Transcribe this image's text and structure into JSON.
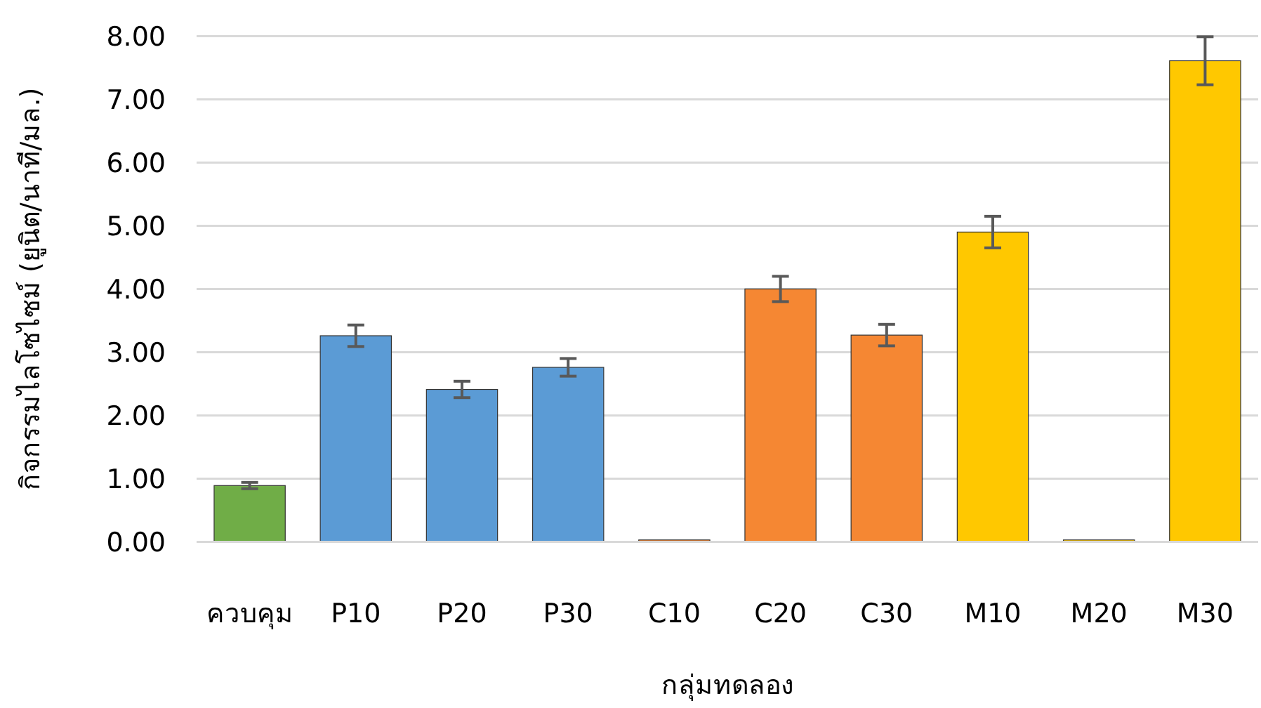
{
  "chart_data": {
    "type": "bar",
    "xlabel": "กลุ่มทดลอง",
    "ylabel": "กิจกรรมไลโซไซม์ (ยูนิต/นาที/มล.)",
    "categories": [
      "ควบคุม",
      "P10",
      "P20",
      "P30",
      "C10",
      "C20",
      "C30",
      "M10",
      "M20",
      "M30"
    ],
    "values": [
      0.89,
      3.26,
      2.41,
      2.76,
      0.03,
      4.0,
      3.27,
      4.9,
      0.03,
      7.61
    ],
    "errors": [
      0.05,
      0.17,
      0.13,
      0.14,
      null,
      0.2,
      0.17,
      0.25,
      null,
      0.38
    ],
    "colors": [
      "#70ad47",
      "#5b9bd5",
      "#5b9bd5",
      "#5b9bd5",
      "#f58733",
      "#f58733",
      "#f58733",
      "#ffc800",
      "#ffc800",
      "#ffc800"
    ],
    "ylim": [
      0,
      8
    ],
    "yticks": [
      {
        "value": 0,
        "label": "0.00"
      },
      {
        "value": 1,
        "label": "1.00"
      },
      {
        "value": 2,
        "label": "2.00"
      },
      {
        "value": 3,
        "label": "3.00"
      },
      {
        "value": 4,
        "label": "4.00"
      },
      {
        "value": 5,
        "label": "5.00"
      },
      {
        "value": 6,
        "label": "6.00"
      },
      {
        "value": 7,
        "label": "7.00"
      },
      {
        "value": 8,
        "label": "8.00"
      }
    ],
    "grid": "y"
  }
}
